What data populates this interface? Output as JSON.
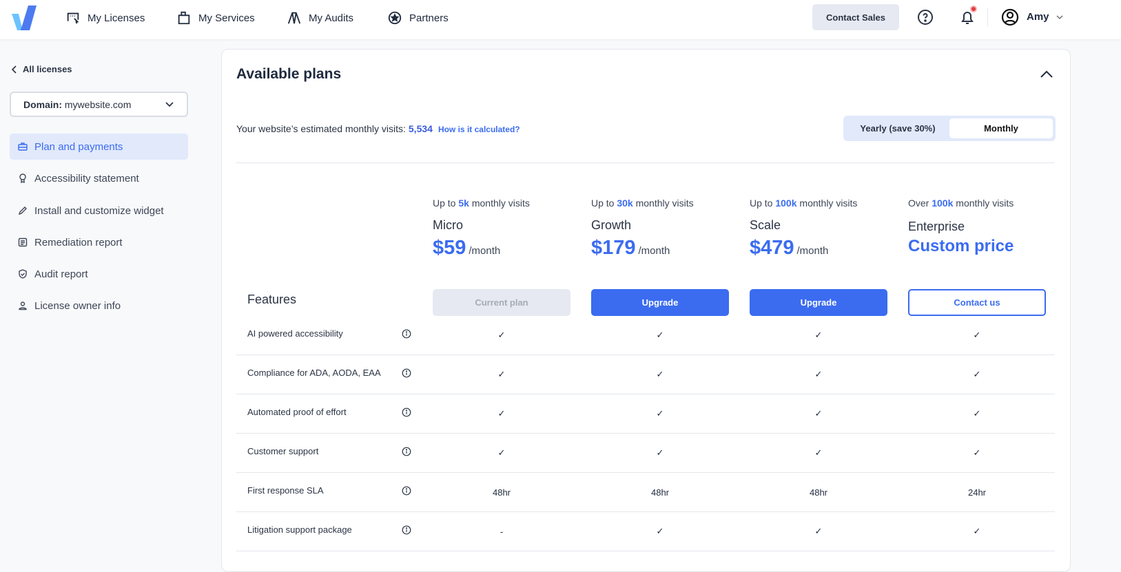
{
  "header": {
    "nav": [
      {
        "label": "My Licenses",
        "icon": "licenses-icon"
      },
      {
        "label": "My Services",
        "icon": "services-icon"
      },
      {
        "label": "My Audits",
        "icon": "audits-icon"
      },
      {
        "label": "Partners",
        "icon": "star-icon"
      }
    ],
    "contact_sales": "Contact Sales",
    "user": "Amy"
  },
  "sidebar": {
    "back": "All licenses",
    "domain_label": "Domain:",
    "domain_value": "mywebsite.com",
    "items": [
      {
        "label": "Plan and payments",
        "active": true
      },
      {
        "label": "Accessibility statement"
      },
      {
        "label": "Install and customize widget"
      },
      {
        "label": "Remediation report"
      },
      {
        "label": "Audit report"
      },
      {
        "label": "License owner info"
      }
    ]
  },
  "main": {
    "title": "Available plans",
    "visits_text": "Your website’s estimated monthly visits:",
    "visits_value": "5,534",
    "how_link": "How is it calculated?",
    "billing": {
      "yearly": "Yearly (save 30%)",
      "monthly": "Monthly",
      "selected": "Monthly"
    },
    "features_heading": "Features",
    "plans": [
      {
        "prefix": "Up to",
        "limit": "5k",
        "suffix": "monthly visits",
        "name": "Micro",
        "price": "$59",
        "period": "/month",
        "button": "Current plan"
      },
      {
        "prefix": "Up to",
        "limit": "30k",
        "suffix": "monthly visits",
        "name": "Growth",
        "price": "$179",
        "period": "/month",
        "button": "Upgrade"
      },
      {
        "prefix": "Up to",
        "limit": "100k",
        "suffix": "monthly visits",
        "name": "Scale",
        "price": "$479",
        "period": "/month",
        "button": "Upgrade"
      },
      {
        "prefix": "Over",
        "limit": "100k",
        "suffix": "monthly visits",
        "name": "Enterprise",
        "price": "Custom price",
        "period": "",
        "button": "Contact us"
      }
    ],
    "features": [
      {
        "label": "AI powered accessibility",
        "values": [
          "✓",
          "✓",
          "✓",
          "✓"
        ]
      },
      {
        "label": "Compliance for ADA, AODA, EAA",
        "values": [
          "✓",
          "✓",
          "✓",
          "✓"
        ]
      },
      {
        "label": "Automated proof of effort",
        "values": [
          "✓",
          "✓",
          "✓",
          "✓"
        ]
      },
      {
        "label": "Customer support",
        "values": [
          "✓",
          "✓",
          "✓",
          "✓"
        ]
      },
      {
        "label": "First response SLA",
        "values": [
          "48hr",
          "48hr",
          "48hr",
          "24hr"
        ]
      },
      {
        "label": "Litigation support package",
        "values": [
          "-",
          "✓",
          "✓",
          "✓"
        ]
      }
    ]
  },
  "colors": {
    "accent": "#3b6cf0",
    "active_bg": "#e1e9fb",
    "notification": "#e23b3b"
  }
}
